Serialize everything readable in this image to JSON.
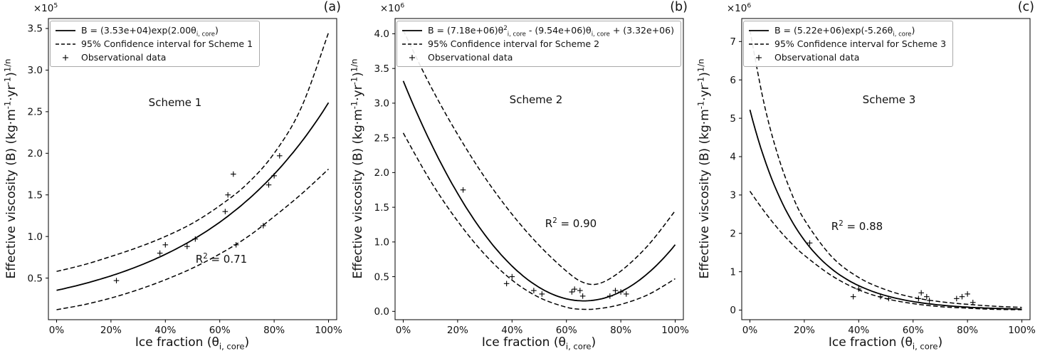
{
  "figure": {
    "xlabel": "Ice fraction (θ_{i, core})",
    "ylabel": "Effective viscosity (B) (kg·m^{-1}·yr^{-1})^{1/n}"
  },
  "chart_data": [
    {
      "type": "line",
      "panel_letter": "(a)",
      "scheme_label": "Scheme 1",
      "r_squared": "R^{2} = 0.71",
      "scale_label": "×10^{5}",
      "xlabel": "Ice fraction (θ_{i, core})",
      "ylabel": "Effective viscosity (B) (kg·m^{-1}·yr^{-1})^{1/n}",
      "legend_position": "upper left",
      "grid": false,
      "legend": {
        "fit_label": "B = (3.53e+04)exp(2.00θ_{i, core})",
        "ci_label": "95% Confidence interval for Scheme 1",
        "obs_label": "Observational data"
      },
      "xlim": [
        -0.03,
        1.03
      ],
      "ylim": [
        0.0,
        3.62
      ],
      "x_ticks": [
        0,
        0.2,
        0.4,
        0.6,
        0.8,
        1.0
      ],
      "x_tick_labels": [
        "0%",
        "20%",
        "40%",
        "60%",
        "80%",
        "100%"
      ],
      "y_ticks": [
        0.5,
        1.0,
        1.5,
        2.0,
        2.5,
        3.0,
        3.5
      ],
      "y_tick_labels": [
        "0.5",
        "1.0",
        "1.5",
        "2.0",
        "2.5",
        "3.0",
        "3.5"
      ],
      "fit": {
        "form": "exp",
        "a": 0.353,
        "b": 2.0
      },
      "ci_upper": [
        [
          0,
          0.58
        ],
        [
          0.1,
          0.66
        ],
        [
          0.2,
          0.76
        ],
        [
          0.3,
          0.87
        ],
        [
          0.4,
          1.0
        ],
        [
          0.5,
          1.16
        ],
        [
          0.6,
          1.37
        ],
        [
          0.7,
          1.63
        ],
        [
          0.8,
          2.0
        ],
        [
          0.9,
          2.55
        ],
        [
          1.0,
          3.45
        ]
      ],
      "ci_lower": [
        [
          0,
          0.12
        ],
        [
          0.1,
          0.18
        ],
        [
          0.2,
          0.26
        ],
        [
          0.3,
          0.36
        ],
        [
          0.4,
          0.48
        ],
        [
          0.5,
          0.62
        ],
        [
          0.6,
          0.79
        ],
        [
          0.7,
          0.99
        ],
        [
          0.8,
          1.24
        ],
        [
          0.9,
          1.51
        ],
        [
          1.0,
          1.81
        ]
      ],
      "observations": [
        [
          0.22,
          0.47
        ],
        [
          0.38,
          0.8
        ],
        [
          0.4,
          0.9
        ],
        [
          0.48,
          0.88
        ],
        [
          0.51,
          0.97
        ],
        [
          0.62,
          1.3
        ],
        [
          0.63,
          1.5
        ],
        [
          0.65,
          1.75
        ],
        [
          0.66,
          0.9
        ],
        [
          0.76,
          1.13
        ],
        [
          0.78,
          1.62
        ],
        [
          0.8,
          1.73
        ],
        [
          0.82,
          1.97
        ]
      ],
      "annotations": {
        "scheme_pos": {
          "fx": 0.44,
          "fy": 0.28
        },
        "r2_pos": {
          "fx": 0.6,
          "fy": 0.8
        }
      }
    },
    {
      "type": "line",
      "panel_letter": "(b)",
      "scheme_label": "Scheme 2",
      "r_squared": "R^{2} = 0.90",
      "scale_label": "×10^{6}",
      "xlabel": "Ice fraction (θ_{i, core})",
      "ylabel": "Effective viscosity (B) (kg·m^{-1}·yr^{-1})^{1/n}",
      "legend_position": "upper left",
      "grid": false,
      "legend": {
        "fit_label": "B = (7.18e+06)θ^{2}_{i, core} - (9.54e+06)θ_{i, core} + (3.32e+06)",
        "ci_label": "95% Confidence interval for Scheme 2",
        "obs_label": "Observational data"
      },
      "xlim": [
        -0.03,
        1.03
      ],
      "ylim": [
        -0.12,
        4.22
      ],
      "x_ticks": [
        0,
        0.2,
        0.4,
        0.6,
        0.8,
        1.0
      ],
      "x_tick_labels": [
        "0%",
        "20%",
        "40%",
        "60%",
        "80%",
        "100%"
      ],
      "y_ticks": [
        0.0,
        0.5,
        1.0,
        1.5,
        2.0,
        2.5,
        3.0,
        3.5,
        4.0
      ],
      "y_tick_labels": [
        "0.0",
        "0.5",
        "1.0",
        "1.5",
        "2.0",
        "2.5",
        "3.0",
        "3.5",
        "4.0"
      ],
      "fit": {
        "form": "quad",
        "a": 7.18,
        "b": -9.54,
        "c": 3.32
      },
      "ci_upper": [
        [
          0,
          4.05
        ],
        [
          0.1,
          3.25
        ],
        [
          0.2,
          2.55
        ],
        [
          0.3,
          1.93
        ],
        [
          0.4,
          1.4
        ],
        [
          0.5,
          0.95
        ],
        [
          0.6,
          0.58
        ],
        [
          0.66,
          0.42
        ],
        [
          0.72,
          0.4
        ],
        [
          0.8,
          0.58
        ],
        [
          0.9,
          0.95
        ],
        [
          1.0,
          1.45
        ]
      ],
      "ci_lower": [
        [
          0,
          2.57
        ],
        [
          0.1,
          1.88
        ],
        [
          0.2,
          1.3
        ],
        [
          0.3,
          0.82
        ],
        [
          0.4,
          0.45
        ],
        [
          0.5,
          0.2
        ],
        [
          0.6,
          0.06
        ],
        [
          0.66,
          0.03
        ],
        [
          0.72,
          0.04
        ],
        [
          0.8,
          0.1
        ],
        [
          0.9,
          0.24
        ],
        [
          1.0,
          0.47
        ]
      ],
      "observations": [
        [
          0.22,
          1.75
        ],
        [
          0.38,
          0.4
        ],
        [
          0.4,
          0.5
        ],
        [
          0.48,
          0.3
        ],
        [
          0.51,
          0.25
        ],
        [
          0.62,
          0.28
        ],
        [
          0.63,
          0.32
        ],
        [
          0.65,
          0.3
        ],
        [
          0.66,
          0.22
        ],
        [
          0.76,
          0.22
        ],
        [
          0.78,
          0.3
        ],
        [
          0.8,
          0.28
        ],
        [
          0.82,
          0.25
        ]
      ],
      "annotations": {
        "scheme_pos": {
          "fx": 0.49,
          "fy": 0.27
        },
        "r2_pos": {
          "fx": 0.61,
          "fy": 0.68
        }
      }
    },
    {
      "type": "line",
      "panel_letter": "(c)",
      "scheme_label": "Scheme 3",
      "r_squared": "R^{2} = 0.88",
      "scale_label": "×10^{6}",
      "xlabel": "Ice fraction (θ_{i, core})",
      "ylabel": "Effective viscosity (B) (kg·m^{-1}·yr^{-1})^{1/n}",
      "legend_position": "upper left",
      "grid": false,
      "legend": {
        "fit_label": "B = (5.22e+06)exp(-5.26θ_{i, core})",
        "ci_label": "95% Confidence interval for Scheme 3",
        "obs_label": "Observational data"
      },
      "xlim": [
        -0.03,
        1.03
      ],
      "ylim": [
        -0.25,
        7.6
      ],
      "x_ticks": [
        0,
        0.2,
        0.4,
        0.6,
        0.8,
        1.0
      ],
      "x_tick_labels": [
        "0%",
        "20%",
        "40%",
        "60%",
        "80%",
        "100%"
      ],
      "y_ticks": [
        0,
        1,
        2,
        3,
        4,
        5,
        6,
        7
      ],
      "y_tick_labels": [
        "0",
        "1",
        "2",
        "3",
        "4",
        "5",
        "6",
        "7"
      ],
      "fit": {
        "form": "exp",
        "a": 5.22,
        "b": -5.26
      },
      "ci_upper": [
        [
          0,
          7.3
        ],
        [
          0.05,
          5.45
        ],
        [
          0.1,
          4.1
        ],
        [
          0.15,
          3.1
        ],
        [
          0.2,
          2.36
        ],
        [
          0.3,
          1.4
        ],
        [
          0.4,
          0.85
        ],
        [
          0.5,
          0.53
        ],
        [
          0.6,
          0.33
        ],
        [
          0.7,
          0.22
        ],
        [
          0.8,
          0.15
        ],
        [
          0.9,
          0.1
        ],
        [
          1.0,
          0.07
        ]
      ],
      "ci_lower": [
        [
          0,
          3.1
        ],
        [
          0.05,
          2.6
        ],
        [
          0.1,
          2.15
        ],
        [
          0.15,
          1.76
        ],
        [
          0.2,
          1.43
        ],
        [
          0.3,
          0.9
        ],
        [
          0.4,
          0.53
        ],
        [
          0.5,
          0.3
        ],
        [
          0.6,
          0.17
        ],
        [
          0.7,
          0.09
        ],
        [
          0.8,
          0.05
        ],
        [
          0.9,
          0.02
        ],
        [
          1.0,
          0.01
        ]
      ],
      "observations": [
        [
          0.22,
          1.75
        ],
        [
          0.38,
          0.35
        ],
        [
          0.4,
          0.55
        ],
        [
          0.48,
          0.35
        ],
        [
          0.51,
          0.3
        ],
        [
          0.62,
          0.3
        ],
        [
          0.63,
          0.45
        ],
        [
          0.65,
          0.35
        ],
        [
          0.66,
          0.25
        ],
        [
          0.76,
          0.3
        ],
        [
          0.78,
          0.35
        ],
        [
          0.8,
          0.42
        ],
        [
          0.82,
          0.2
        ]
      ],
      "annotations": {
        "scheme_pos": {
          "fx": 0.51,
          "fy": 0.27
        },
        "r2_pos": {
          "fx": 0.4,
          "fy": 0.69
        }
      }
    }
  ]
}
